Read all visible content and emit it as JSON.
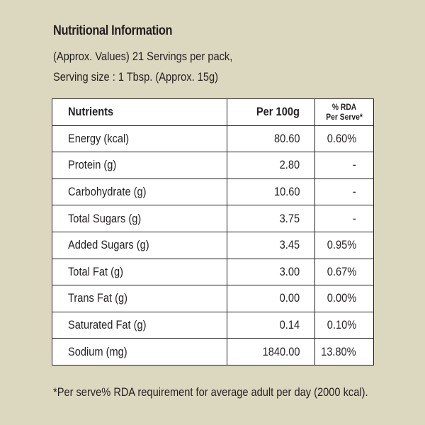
{
  "title": "Nutritional Information",
  "subtitle_line1": "(Approx. Values) 21 Servings per pack,",
  "subtitle_line2": "Serving size : 1 Tbsp. (Approx. 15g)",
  "table": {
    "headers": {
      "nutrients": "Nutrients",
      "per100g": "Per 100g",
      "rda_line1": "% RDA",
      "rda_line2": "Per Serve*"
    },
    "rows": [
      {
        "name": "Energy (kcal)",
        "per100g": "80.60",
        "rda": "0.60%"
      },
      {
        "name": "Protein (g)",
        "per100g": "2.80",
        "rda": "-"
      },
      {
        "name": "Carbohydrate (g)",
        "per100g": "10.60",
        "rda": "-"
      },
      {
        "name": "Total Sugars (g)",
        "per100g": "3.75",
        "rda": "-"
      },
      {
        "name": "Added Sugars (g)",
        "per100g": "3.45",
        "rda": "0.95%"
      },
      {
        "name": "Total Fat (g)",
        "per100g": "3.00",
        "rda": "0.67%"
      },
      {
        "name": "Trans Fat (g)",
        "per100g": "0.00",
        "rda": "0.00%"
      },
      {
        "name": "Saturated Fat (g)",
        "per100g": "0.14",
        "rda": "0.10%"
      },
      {
        "name": "Sodium (mg)",
        "per100g": "1840.00",
        "rda": "13.80%"
      }
    ]
  },
  "footnote": "*Per serve% RDA requirement for average adult per day (2000 kcal).",
  "colors": {
    "background": "#dcd8c0",
    "table_background": "#ffffff",
    "text": "#231f20"
  }
}
